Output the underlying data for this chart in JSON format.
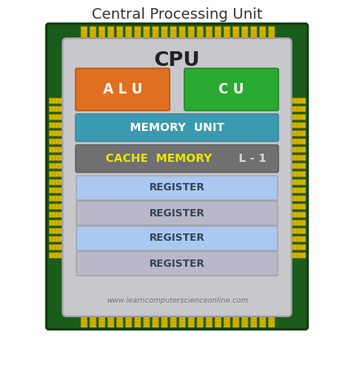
{
  "title": "Central Processing Unit",
  "title_fontsize": 13,
  "cpu_label": "CPU",
  "cpu_label_fontsize": 18,
  "background_color": "#ffffff",
  "chip_bg_color": "#c8c8cc",
  "chip_border_color": "#b0b0b8",
  "pcb_color": "#1a5c1a",
  "pcb_border_color": "#0a3a0a",
  "pin_color_light": "#d4b800",
  "pin_color_dark": "#8a7000",
  "alu_color": "#e07020",
  "cu_color": "#2aaa30",
  "memory_unit_color": "#3a9ab0",
  "cache_memory_color": "#707070",
  "register_colors": [
    "#aac8f0",
    "#b8b8c8",
    "#aac8f0",
    "#b8b8c8"
  ],
  "alu_text": "A L U",
  "cu_text": "C U",
  "memory_unit_text": "MEMORY  UNIT",
  "cache_memory_text": "CACHE  MEMORY",
  "cache_label": "L - 1",
  "register_text": "REGISTER",
  "watermark": "www.learncomputerscienceonline.com",
  "label_color_white": "#ffffff",
  "label_color_yellow": "#e8e800",
  "label_color_lightgray": "#d8d8d8",
  "cpu_text_color": "#222222",
  "title_color": "#333333",
  "reg_text_color": "#334455"
}
